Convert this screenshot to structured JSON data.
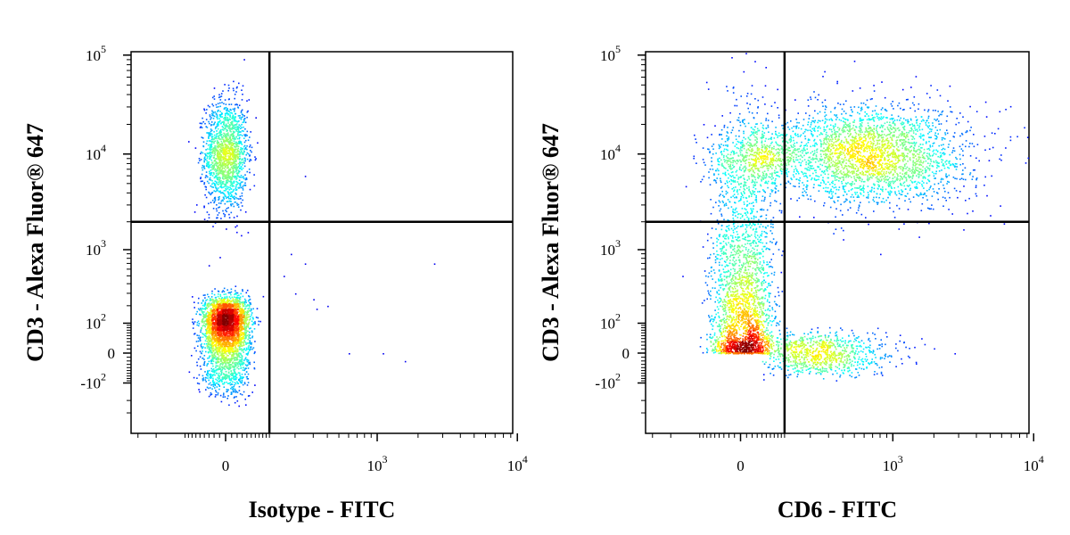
{
  "chart_data": [
    {
      "type": "scatter",
      "subtype": "flow-cytometry-density-dot-plot",
      "title": "",
      "xlabel": "Isotype - FITC",
      "ylabel": "CD3 - Alexa Fluor® 647",
      "x_scale": "biexponential",
      "y_scale": "biexponential",
      "x_ticks": [
        {
          "value": 0,
          "base": "0",
          "exp": ""
        },
        {
          "value": 1000,
          "base": "10",
          "exp": "3"
        },
        {
          "value": 10000,
          "base": "10",
          "exp": "4"
        }
      ],
      "y_ticks": [
        {
          "value": -100,
          "base": "-10",
          "exp": "2"
        },
        {
          "value": 0,
          "base": "0",
          "exp": ""
        },
        {
          "value": 100,
          "base": "10",
          "exp": "2"
        },
        {
          "value": 1000,
          "base": "10",
          "exp": "3"
        },
        {
          "value": 10000,
          "base": "10",
          "exp": "4"
        },
        {
          "value": 100000,
          "base": "10",
          "exp": "5"
        }
      ],
      "xlim": [
        -400,
        50000
      ],
      "ylim": [
        -400,
        600000
      ],
      "gate": {
        "x": 100,
        "y": 2000
      },
      "populations": [
        {
          "name": "",
          "x_center": 0,
          "y_center": 10000,
          "x_spread": 20,
          "y_spread": 0.28,
          "count": 1600
        },
        {
          "name": "",
          "x_center": 0,
          "y_center": 80,
          "x_spread": 22,
          "y_spread": 0.9,
          "count": 3400
        }
      ],
      "outliers": [
        {
          "x": 150,
          "y": 500
        },
        {
          "x": 200,
          "y": 300
        },
        {
          "x": 250,
          "y": 700
        },
        {
          "x": 300,
          "y": 250
        },
        {
          "x": 400,
          "y": 200
        },
        {
          "x": 600,
          "y": 0
        },
        {
          "x": 1100,
          "y": 0
        },
        {
          "x": 1600,
          "y": -20
        },
        {
          "x": 2600,
          "y": 700
        },
        {
          "x": 250,
          "y": 6000
        },
        {
          "x": 320,
          "y": 180
        },
        {
          "x": 180,
          "y": 900
        }
      ]
    },
    {
      "type": "scatter",
      "subtype": "flow-cytometry-density-dot-plot",
      "title": "",
      "xlabel": "CD6 - FITC",
      "ylabel": "CD3 - Alexa Fluor® 647",
      "x_scale": "biexponential",
      "y_scale": "biexponential",
      "x_ticks": [
        {
          "value": 0,
          "base": "0",
          "exp": ""
        },
        {
          "value": 1000,
          "base": "10",
          "exp": "3"
        },
        {
          "value": 10000,
          "base": "10",
          "exp": "4"
        }
      ],
      "y_ticks": [
        {
          "value": -100,
          "base": "-10",
          "exp": "2"
        },
        {
          "value": 0,
          "base": "0",
          "exp": ""
        },
        {
          "value": 100,
          "base": "10",
          "exp": "2"
        },
        {
          "value": 1000,
          "base": "10",
          "exp": "3"
        },
        {
          "value": 10000,
          "base": "10",
          "exp": "4"
        },
        {
          "value": 100000,
          "base": "10",
          "exp": "5"
        }
      ],
      "xlim": [
        -400,
        50000
      ],
      "ylim": [
        -400,
        600000
      ],
      "gate": {
        "x": 100,
        "y": 2000
      },
      "populations": [
        {
          "name": "",
          "x_center": 700,
          "y_center": 10000,
          "x_spread": 0.35,
          "y_spread": 0.25,
          "count": 2600
        },
        {
          "name": "",
          "x_center": 40,
          "y_center": 9000,
          "x_spread": 0.55,
          "y_spread": 0.18,
          "count": 700
        },
        {
          "name": "",
          "x_center": 5,
          "y_center": 200,
          "x_spread": 30,
          "y_spread": 1.0,
          "count": 2600
        },
        {
          "name": "",
          "x_center": 250,
          "y_center": 0,
          "x_spread": 0.3,
          "y_spread": 30,
          "count": 900
        }
      ],
      "outliers": [
        {
          "x": 1000,
          "y": 2600
        },
        {
          "x": 1500,
          "y": 2000
        },
        {
          "x": 2800,
          "y": 0
        },
        {
          "x": 1100,
          "y": 1700
        },
        {
          "x": -80,
          "y": 6000
        },
        {
          "x": -150,
          "y": 500
        },
        {
          "x": 2000,
          "y": 5000
        },
        {
          "x": 800,
          "y": 900
        }
      ]
    }
  ]
}
